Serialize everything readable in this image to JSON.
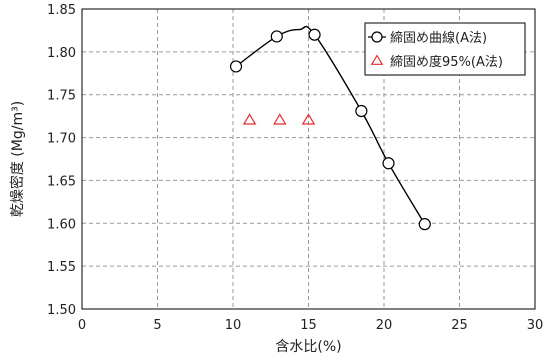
{
  "chart_data": {
    "type": "scatter",
    "xlabel": "含水比(%)",
    "ylabel": "乾燥密度 (Mg/m³)",
    "xlim": [
      0,
      30
    ],
    "ylim": [
      1.5,
      1.85
    ],
    "x_ticks": [
      "0",
      "5",
      "10",
      "15",
      "20",
      "25",
      "30"
    ],
    "y_ticks": [
      "1.50",
      "1.55",
      "1.60",
      "1.65",
      "1.70",
      "1.75",
      "1.80",
      "1.85"
    ],
    "grid": true,
    "legend_position": "top-right",
    "series": [
      {
        "name": "締固め曲線(A法)",
        "marker": "circle",
        "color": "#000000",
        "line": "smooth",
        "points": [
          {
            "x": 10.2,
            "y": 1.783
          },
          {
            "x": 12.9,
            "y": 1.818
          },
          {
            "x": 15.4,
            "y": 1.82
          },
          {
            "x": 18.5,
            "y": 1.731
          },
          {
            "x": 20.3,
            "y": 1.67
          },
          {
            "x": 22.7,
            "y": 1.599
          }
        ],
        "curve_peak": {
          "x": 14.4,
          "y": 1.826
        }
      },
      {
        "name": "締固め度95%(A法)",
        "marker": "triangle",
        "color": "#e03030",
        "line": "none",
        "points": [
          {
            "x": 11.1,
            "y": 1.72
          },
          {
            "x": 13.1,
            "y": 1.72
          },
          {
            "x": 15.0,
            "y": 1.72
          }
        ]
      }
    ]
  }
}
